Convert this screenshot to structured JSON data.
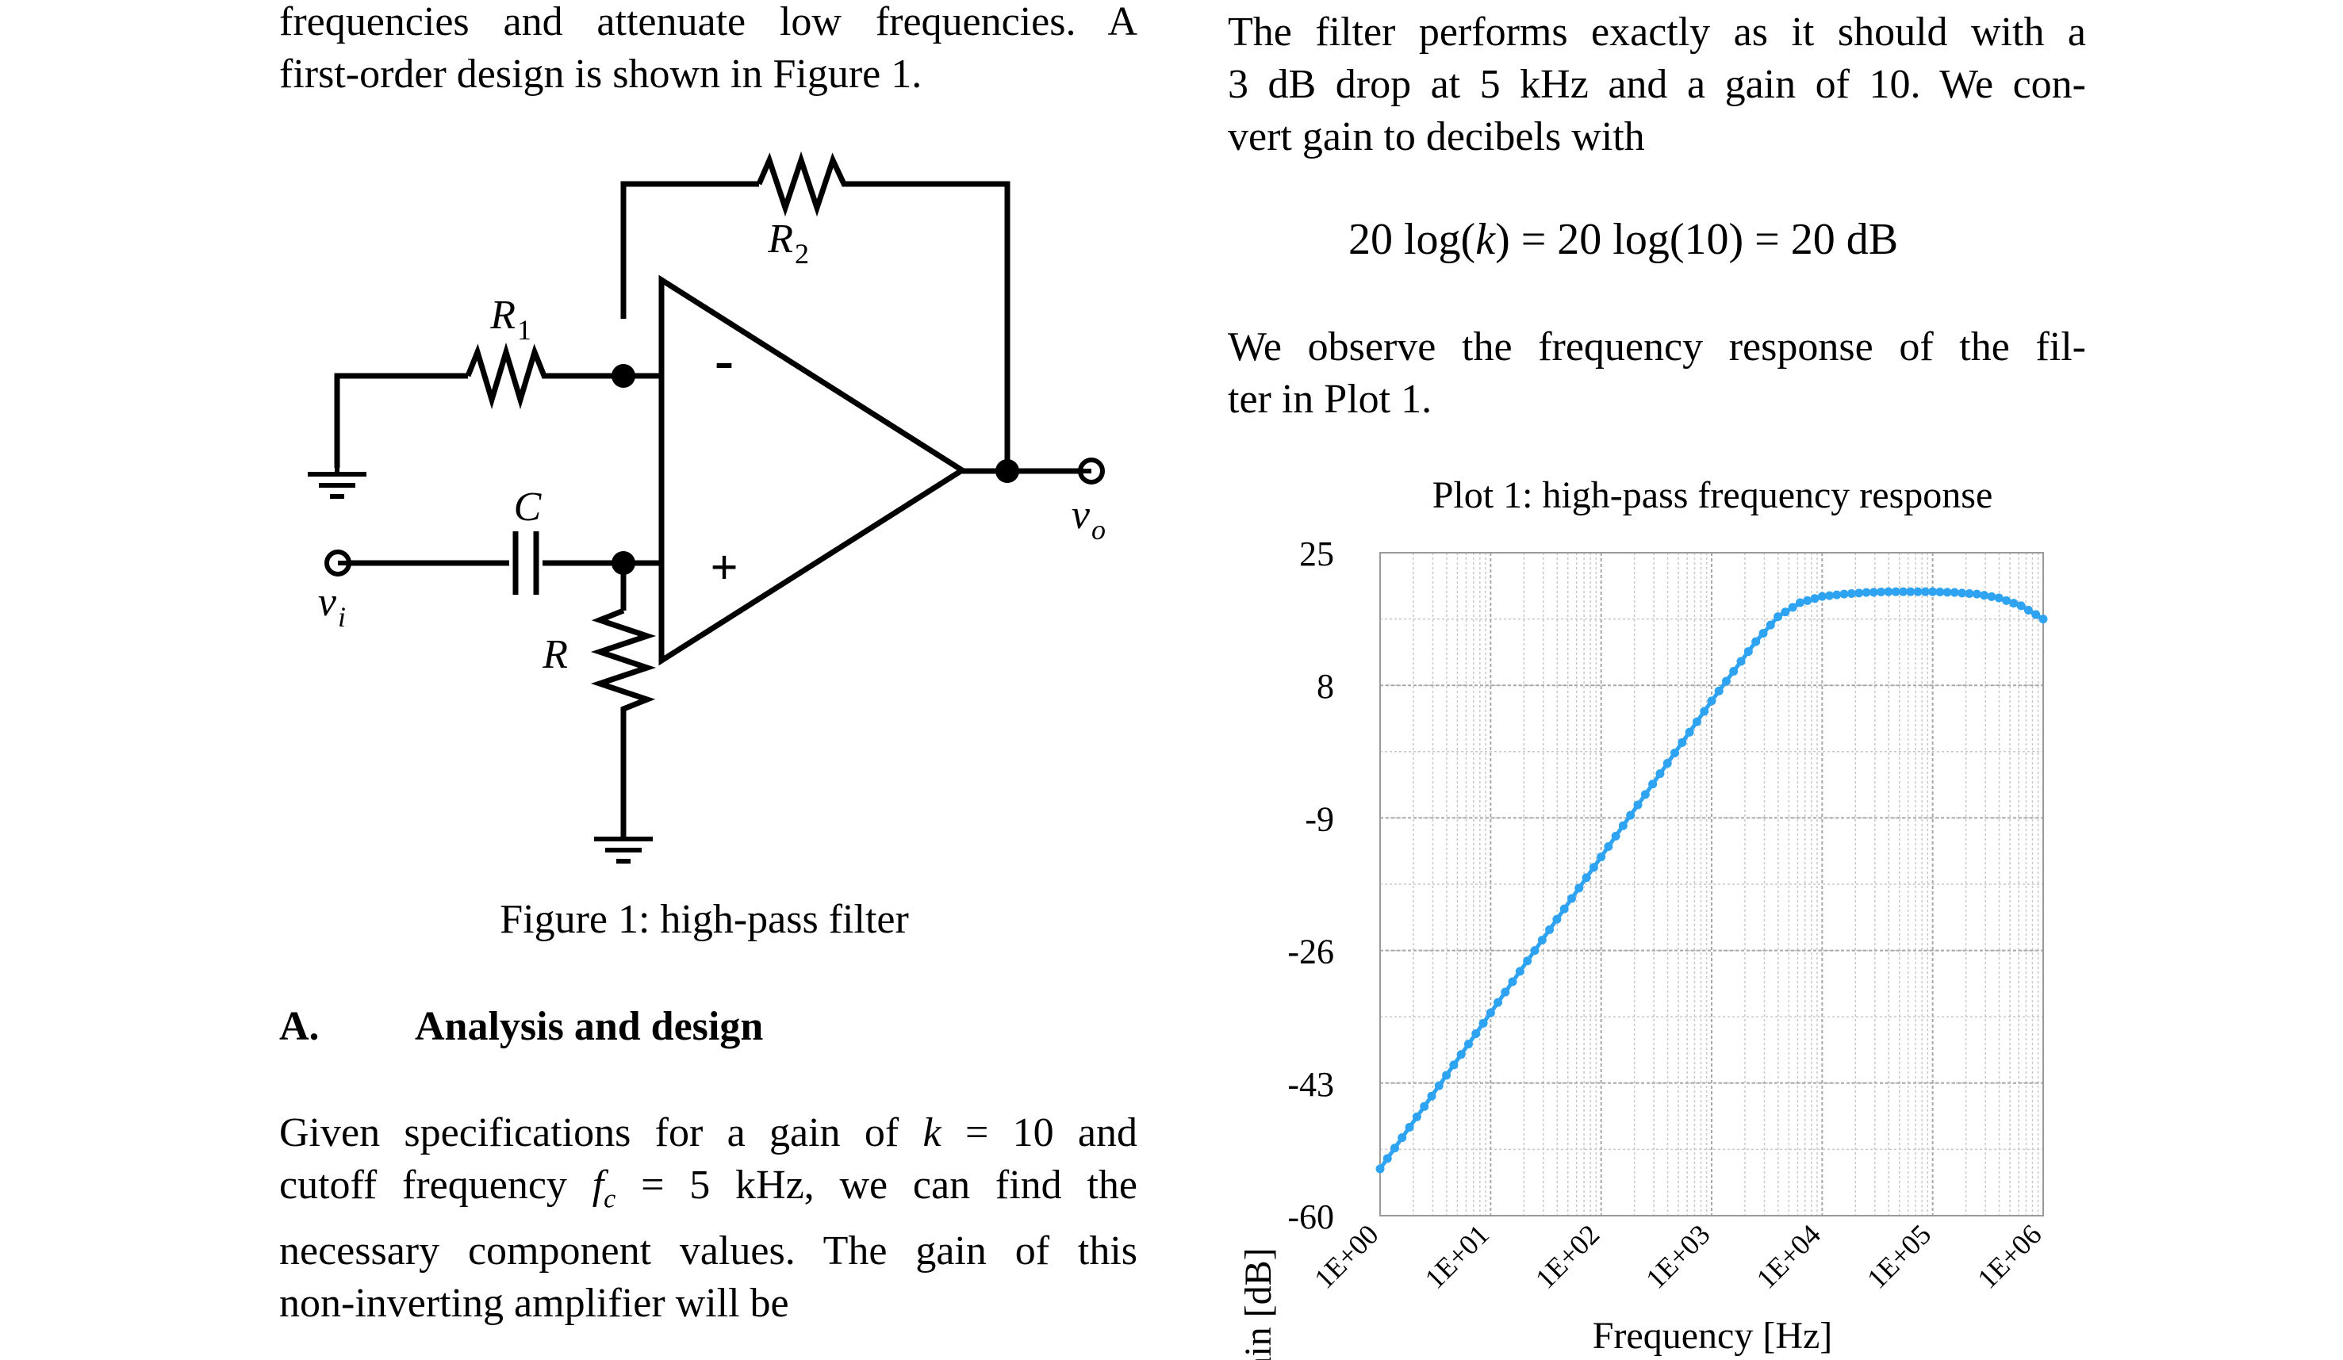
{
  "left": {
    "intro_lines": [
      "frequencies and attenuate low frequencies. A",
      "first-order design is shown in Figure 1."
    ],
    "figure": {
      "labels": {
        "r1": "R",
        "r1_sub": "1",
        "r2": "R",
        "r2_sub": "2",
        "c": "C",
        "r": "R",
        "vi": "v",
        "vi_sub": "i",
        "vo": "v",
        "vo_sub": "o",
        "minus": "-",
        "plus": "+"
      },
      "caption": "Figure 1: high-pass filter"
    },
    "section": {
      "number": "A.",
      "title": "Analysis and design"
    },
    "body_lines": [
      "Given specifications for a gain of k = 10 and",
      "cutoff frequency f = 5 kHz, we can find the",
      "necessary component values. The gain of this",
      "non-inverting amplifier will be"
    ],
    "body_parts": {
      "l1_a": "Given specifications for a gain of ",
      "l1_var": "k",
      "l1_b": " = 10 and",
      "l2_a": "cutoff frequency ",
      "l2_var": "f",
      "l2_sub": "c",
      "l2_b": " = 5 kHz, we can find the"
    }
  },
  "right": {
    "lines_top": [
      "The filter performs exactly as it should with a",
      "3 dB drop at 5 kHz and a gain of 10. We con-",
      "vert gain to decibels with"
    ],
    "equation": {
      "a": "20 log(",
      "var": "k",
      "b": ") = 20 log(10) = 20 dB"
    },
    "lines_mid": [
      "We observe the frequency response of the fil-",
      "ter in Plot 1."
    ]
  },
  "chart_data": {
    "type": "line",
    "title": "Plot 1: high-pass frequency response",
    "xlabel": "Frequency [Hz]",
    "ylabel": "Gain [dB]",
    "x_scale": "log",
    "xlim": [
      1,
      1000000
    ],
    "ylim": [
      -60,
      25
    ],
    "yticks": [
      25,
      8,
      -9,
      -26,
      -43,
      -60
    ],
    "xtick_labels": [
      "1E+00",
      "1E+01",
      "1E+02",
      "1E+03",
      "1E+04",
      "1E+05",
      "1E+06"
    ],
    "grid": true,
    "series": [
      {
        "color": "#2ea3f2",
        "x": [
          1,
          1.58,
          2.51,
          3.98,
          6.31,
          10,
          15.8,
          25.1,
          39.8,
          63.1,
          100,
          158,
          251,
          398,
          631,
          1000,
          1580,
          2510,
          3980,
          6310,
          10000,
          15800,
          25100,
          39800,
          63100,
          100000,
          158000,
          251000,
          398000,
          631000,
          1000000
        ],
        "y": [
          -54,
          -50,
          -46,
          -42,
          -38,
          -34,
          -30,
          -26,
          -22,
          -18,
          -14,
          -10,
          -6,
          -2,
          2,
          6,
          9.8,
          13.6,
          16.8,
          18.6,
          19.4,
          19.7,
          19.9,
          20,
          20,
          20,
          19.9,
          19.7,
          19.2,
          18.2,
          16.5
        ]
      }
    ]
  },
  "colors": {
    "series": "#2ea3f2",
    "grid": "#c8c8c8",
    "frame": "#9a9a9a"
  }
}
